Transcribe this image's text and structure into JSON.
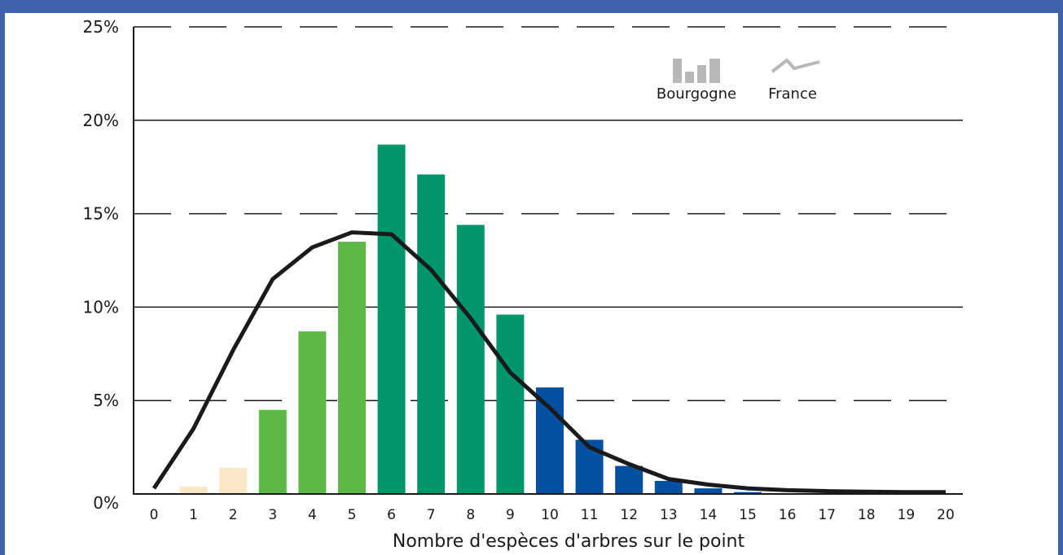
{
  "chart_data": {
    "type": "bar",
    "xlabel": "Nombre d'espèces d'arbres sur le point",
    "ylabel": "",
    "ylim": [
      0,
      25
    ],
    "y_ticks": [
      "0%",
      "5%",
      "10%",
      "15%",
      "20%",
      "25%"
    ],
    "y_tick_values": [
      0,
      5,
      10,
      15,
      20,
      25
    ],
    "grid": "horizontal, dashed at 5%, 15%, 25%; solid at 10%, 20%",
    "legend_position": "top-right",
    "categories": [
      "0",
      "1",
      "2",
      "3",
      "4",
      "5",
      "6",
      "7",
      "8",
      "9",
      "10",
      "11",
      "12",
      "13",
      "14",
      "15",
      "16",
      "17",
      "18",
      "19",
      "20"
    ],
    "series": [
      {
        "name": "Bourgogne",
        "kind": "bar",
        "values": [
          0,
          0.4,
          1.4,
          4.5,
          8.7,
          13.5,
          18.7,
          17.1,
          14.4,
          9.6,
          5.7,
          2.9,
          1.5,
          0.7,
          0.3,
          0.1,
          0,
          0,
          0,
          0,
          0
        ]
      },
      {
        "name": "France",
        "kind": "line",
        "values": [
          0.3,
          3.5,
          7.7,
          11.5,
          13.2,
          14.0,
          13.9,
          12.0,
          9.4,
          6.5,
          4.6,
          2.5,
          1.6,
          0.8,
          0.5,
          0.3,
          0.2,
          0.15,
          0.12,
          0.1,
          0.1
        ]
      }
    ],
    "bar_colors": [
      "#fbe8c6",
      "#fbe8c6",
      "#fbe8c6",
      "#5cb946",
      "#5cb946",
      "#5cb946",
      "#00956b",
      "#00956b",
      "#00956b",
      "#00956b",
      "#0550a3",
      "#0550a3",
      "#0550a3",
      "#0550a3",
      "#0550a3",
      "#0550a3",
      "#0550a3",
      "#0550a3",
      "#0550a3",
      "#0550a3",
      "#0550a3"
    ],
    "line_color": "#1a1a1a",
    "legend_bar_color": "#b8b8b8",
    "legend_line_color": "#b8b8b8",
    "frame_color": "#3f63ad"
  }
}
